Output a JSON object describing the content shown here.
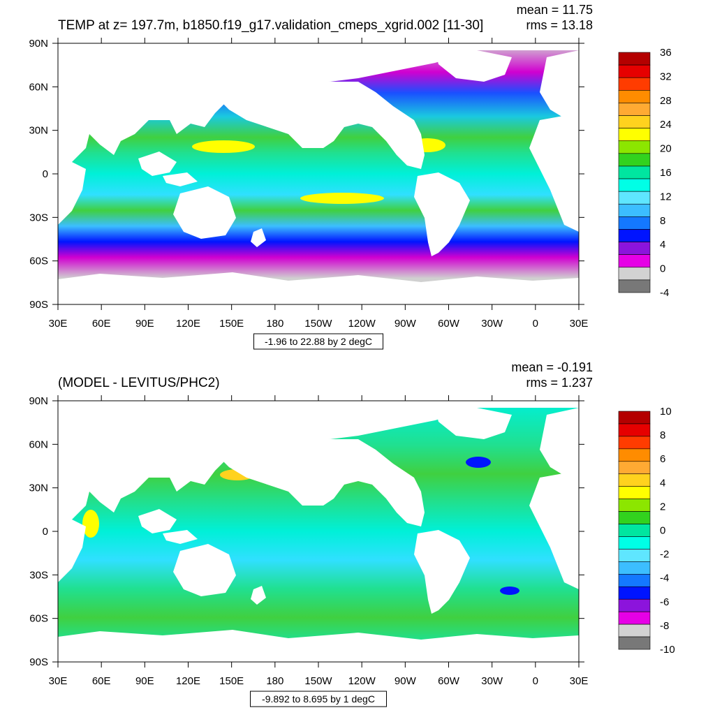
{
  "panels": [
    {
      "title": "TEMP at z= 197.7m, b1850.f19_g17.validation_cmeps_xgrid.002 [11-30]",
      "stats": {
        "mean_text": "mean = 11.75",
        "rms_text": "rms = 13.18"
      },
      "caption": "-1.96 to 22.88 by 2 degC",
      "colorbar": {
        "labels": [
          "36",
          "32",
          "28",
          "24",
          "20",
          "16",
          "12",
          "8",
          "4",
          "0",
          "-4"
        ],
        "colors": [
          "#b40000",
          "#e60000",
          "#ff3c00",
          "#ff8c00",
          "#ffaa33",
          "#ffd21e",
          "#ffff00",
          "#8ce600",
          "#32d21e",
          "#00e6a0",
          "#00ffe6",
          "#5fe6ff",
          "#3cbeff",
          "#1478ff",
          "#0014ff",
          "#8c14dc",
          "#e600e6",
          "#d2d2d2",
          "#787878"
        ]
      }
    },
    {
      "title": "(MODEL - LEVITUS/PHC2)",
      "stats": {
        "mean_text": "mean = -0.191",
        "rms_text": "rms = 1.237"
      },
      "caption": "-9.892 to 8.695 by 1 degC",
      "colorbar": {
        "labels": [
          "10",
          "8",
          "6",
          "4",
          "2",
          "0",
          "-2",
          "-4",
          "-6",
          "-8",
          "-10"
        ],
        "colors": [
          "#b40000",
          "#e60000",
          "#ff3c00",
          "#ff8c00",
          "#ffaa33",
          "#ffd21e",
          "#ffff00",
          "#8ce600",
          "#32d21e",
          "#00e6a0",
          "#00ffe6",
          "#5fe6ff",
          "#3cbeff",
          "#1478ff",
          "#0014ff",
          "#8c14dc",
          "#e600e6",
          "#d2d2d2",
          "#787878"
        ]
      }
    }
  ],
  "x_tick_labels": [
    "30E",
    "60E",
    "90E",
    "120E",
    "150E",
    "180",
    "150W",
    "120W",
    "90W",
    "60W",
    "30W",
    "0",
    "30E"
  ],
  "y_tick_labels": [
    "90N",
    "60N",
    "30N",
    "0",
    "30S",
    "60S",
    "90S"
  ],
  "palette": {
    "land": "#ffffff",
    "top_band": {
      "90N": "#d0d0d0",
      "70N": "#d000d0",
      "55N": "#1a50ff",
      "40N": "#1ac9e0",
      "25N": "#40d040",
      "15N": "#20e090",
      "0": "#00f0d8",
      "15S": "#30e0ff",
      "25S": "#40d040",
      "35S": "#3cbeff",
      "45S": "#0014ff",
      "55S": "#d000d0",
      "70S": "#d0d0d0"
    },
    "bottom_band": {
      "90N": "#00f0d8",
      "60N": "#20e090",
      "40N": "#40d040",
      "20N": "#20e090",
      "0": "#00f0d8",
      "20S": "#30e0ff",
      "40S": "#20e090",
      "60S": "#40d040",
      "75S": "#20e090"
    }
  }
}
